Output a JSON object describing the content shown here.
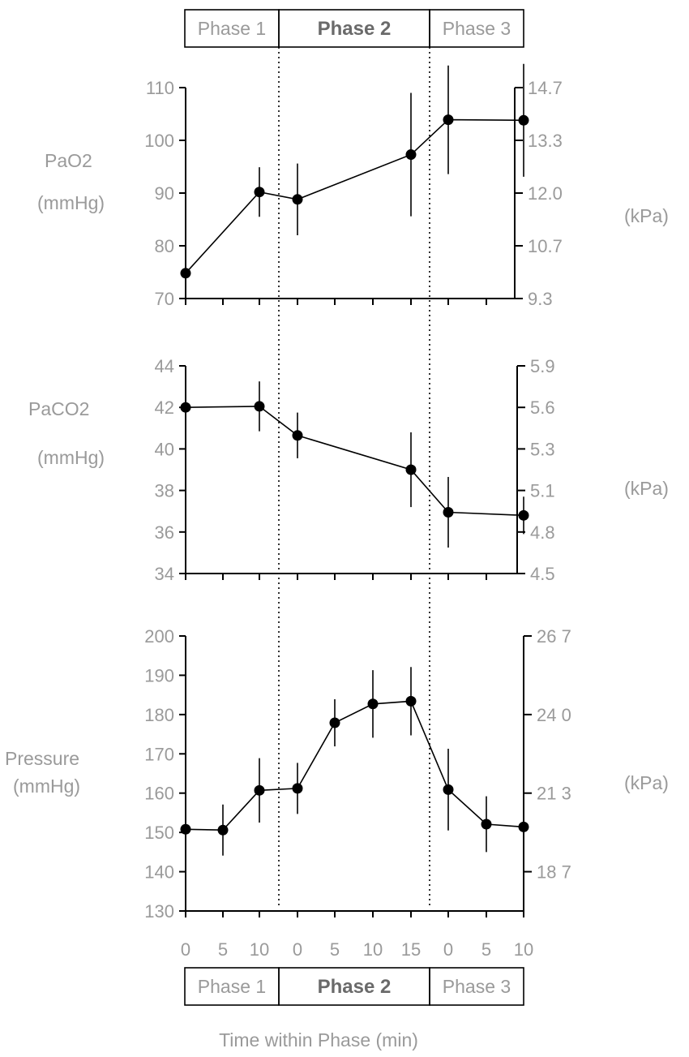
{
  "figure": {
    "phase_labels": [
      "Phase 1",
      "Phase 2",
      "Phase 3"
    ],
    "xlabel": "Time within Phase (min)",
    "x_tick_labels": [
      "0",
      "5",
      "10",
      "0",
      "5",
      "10",
      "15",
      "0",
      "5",
      "10"
    ]
  },
  "chart_data": [
    {
      "type": "line",
      "ylabel": "PaO2",
      "ylabel_units": "(mmHg)",
      "right_axis_label": "(kPa)",
      "ylim": [
        70,
        110
      ],
      "yticks": [
        70,
        80,
        90,
        100,
        110
      ],
      "right_yticks": [
        "9.3",
        "10.7",
        "12.0",
        "13.3",
        "14.7"
      ],
      "x_pos": [
        0,
        2,
        3,
        6,
        7,
        9
      ],
      "values": [
        74.8,
        90.2,
        88.8,
        97.3,
        103.9,
        103.8
      ],
      "error": [
        3,
        4.7,
        6.8,
        11.7,
        10.3,
        10.7
      ]
    },
    {
      "type": "line",
      "ylabel": "PaCO2",
      "ylabel_units": "(mmHg)",
      "right_axis_label": "(kPa)",
      "ylim": [
        34,
        44
      ],
      "yticks": [
        34,
        36,
        38,
        40,
        42,
        44
      ],
      "right_yticks": [
        "4.5",
        "4.8",
        "5.1",
        "5.3",
        "5.6",
        "5.9"
      ],
      "x_pos": [
        0,
        2,
        3,
        6,
        7,
        9
      ],
      "values": [
        42.0,
        42.05,
        40.65,
        39.0,
        36.95,
        36.8
      ],
      "error": [
        1.1,
        1.2,
        1.1,
        1.8,
        1.7,
        0.9
      ]
    },
    {
      "type": "line",
      "ylabel": "Pressure",
      "ylabel_units": "(mmHg)",
      "right_axis_label": "(kPa)",
      "ylim": [
        130,
        200
      ],
      "yticks": [
        130,
        140,
        150,
        160,
        170,
        180,
        190,
        200
      ],
      "right_yticks": [
        "18 7",
        "21 3",
        "24 0",
        "26 7"
      ],
      "right_ytick_values": [
        140,
        160,
        180,
        200
      ],
      "x_pos": [
        0,
        1,
        2,
        3,
        4,
        5,
        6,
        7,
        8,
        9
      ],
      "values": [
        150.8,
        150.6,
        160.7,
        161.2,
        177.9,
        182.7,
        183.4,
        160.9,
        152.1,
        151.4
      ],
      "error": [
        6.5,
        6.5,
        8.2,
        6.5,
        6.0,
        8.6,
        8.7,
        10.4,
        7.1,
        8.0
      ]
    }
  ]
}
